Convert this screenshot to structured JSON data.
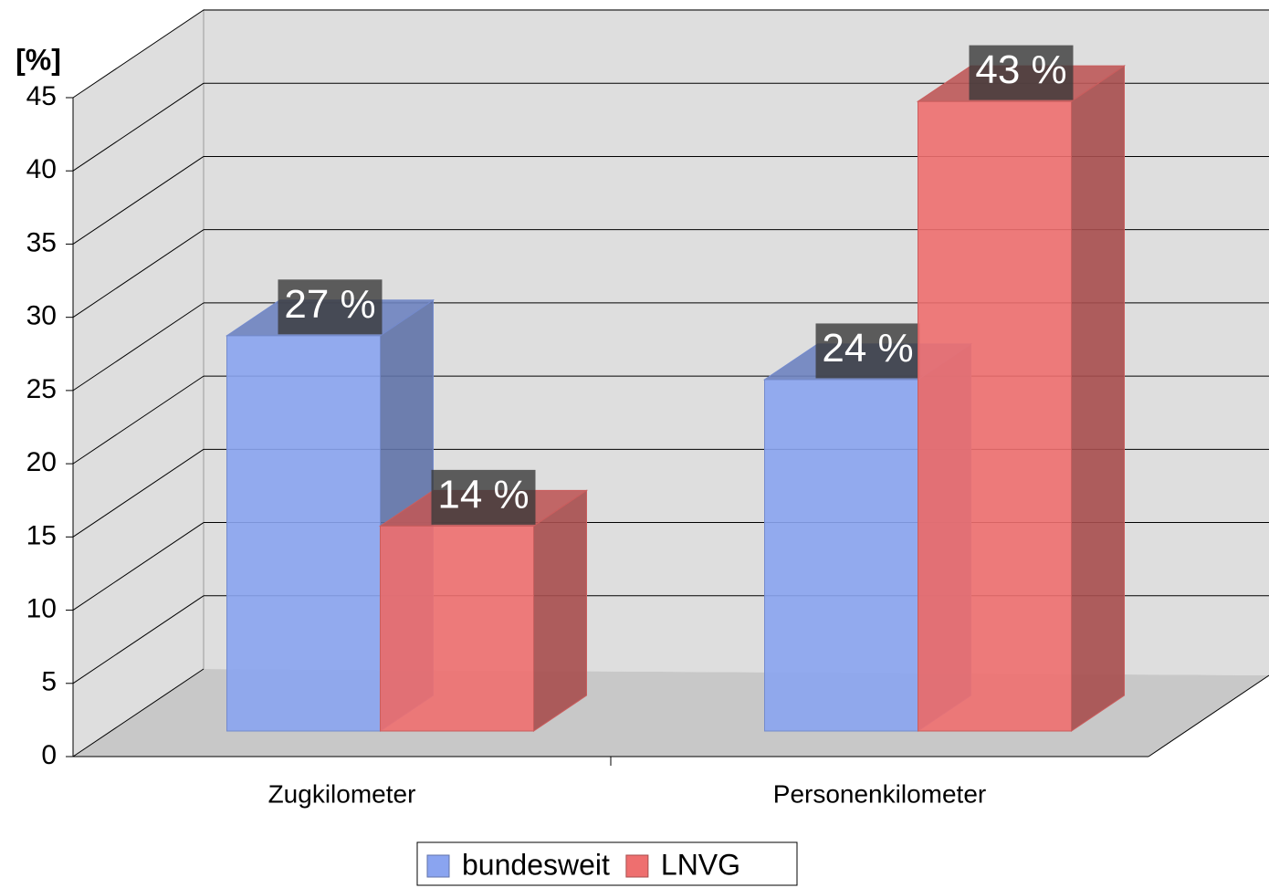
{
  "chart_data": {
    "type": "bar3d",
    "y_axis_label": "[%]",
    "categories": [
      "Zugkilometer",
      "Personenkilometer"
    ],
    "series": [
      {
        "name": "bundesweit",
        "color": "#8aa4f0",
        "values": [
          27,
          24
        ],
        "value_labels": [
          "27 %",
          "24 %"
        ]
      },
      {
        "name": "LNVG",
        "color": "#ee6f6f",
        "values": [
          14,
          43
        ],
        "value_labels": [
          "14 %",
          "43 %"
        ]
      }
    ],
    "ylim": [
      0,
      45
    ],
    "yticks": [
      0,
      5,
      10,
      15,
      20,
      25,
      30,
      35,
      40,
      45
    ],
    "grid": true,
    "legend": "bottom"
  }
}
